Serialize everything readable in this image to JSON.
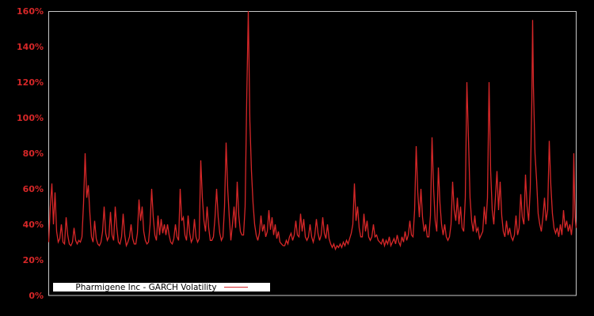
{
  "chart": {
    "background_color": "#000000",
    "frame_color": "#c8c8c8",
    "line_color": "#d62728",
    "tick_color": "#d62728",
    "legend": {
      "label": "Pharmigene Inc - GARCH Volatility",
      "background_color": "#ffffff",
      "border_color": "#000000",
      "text_color": "#000000",
      "sample_color": "#d62728",
      "position": "lower left"
    }
  },
  "chart_data": {
    "type": "line",
    "title": "",
    "xlabel": "",
    "ylabel": "",
    "series_name": "Pharmigene Inc - GARCH Volatility",
    "unit": "%",
    "ylim": [
      0,
      160
    ],
    "x_range": [
      0,
      666
    ],
    "grid": false,
    "x_tick_labels": [],
    "yticks": [
      0,
      20,
      40,
      60,
      80,
      100,
      120,
      140,
      160
    ],
    "ytick_labels": [
      "0%",
      "20%",
      "40%",
      "60%",
      "80%",
      "100%",
      "120%",
      "140%",
      "160%"
    ],
    "legend_position": "lower left",
    "points": [
      [
        0,
        30
      ],
      [
        2,
        50
      ],
      [
        4,
        63
      ],
      [
        6,
        40
      ],
      [
        8,
        58
      ],
      [
        10,
        36
      ],
      [
        12,
        30
      ],
      [
        14,
        32
      ],
      [
        16,
        40
      ],
      [
        18,
        30
      ],
      [
        20,
        29
      ],
      [
        22,
        44
      ],
      [
        24,
        34
      ],
      [
        26,
        29
      ],
      [
        28,
        28
      ],
      [
        30,
        30
      ],
      [
        32,
        38
      ],
      [
        34,
        31
      ],
      [
        36,
        29
      ],
      [
        38,
        31
      ],
      [
        40,
        30
      ],
      [
        42,
        33
      ],
      [
        44,
        52
      ],
      [
        46,
        80
      ],
      [
        48,
        55
      ],
      [
        50,
        62
      ],
      [
        52,
        46
      ],
      [
        54,
        33
      ],
      [
        56,
        30
      ],
      [
        58,
        42
      ],
      [
        60,
        32
      ],
      [
        62,
        29
      ],
      [
        64,
        28
      ],
      [
        66,
        30
      ],
      [
        68,
        36
      ],
      [
        70,
        50
      ],
      [
        72,
        35
      ],
      [
        74,
        31
      ],
      [
        76,
        33
      ],
      [
        78,
        47
      ],
      [
        80,
        34
      ],
      [
        82,
        31
      ],
      [
        84,
        50
      ],
      [
        86,
        38
      ],
      [
        88,
        30
      ],
      [
        90,
        29
      ],
      [
        92,
        33
      ],
      [
        94,
        46
      ],
      [
        96,
        34
      ],
      [
        98,
        28
      ],
      [
        100,
        30
      ],
      [
        102,
        33
      ],
      [
        104,
        40
      ],
      [
        106,
        32
      ],
      [
        108,
        29
      ],
      [
        110,
        29
      ],
      [
        112,
        35
      ],
      [
        114,
        54
      ],
      [
        116,
        42
      ],
      [
        118,
        50
      ],
      [
        120,
        36
      ],
      [
        122,
        31
      ],
      [
        124,
        29
      ],
      [
        126,
        30
      ],
      [
        128,
        40
      ],
      [
        130,
        60
      ],
      [
        132,
        44
      ],
      [
        134,
        34
      ],
      [
        136,
        31
      ],
      [
        138,
        45
      ],
      [
        140,
        34
      ],
      [
        142,
        43
      ],
      [
        144,
        35
      ],
      [
        146,
        40
      ],
      [
        148,
        34
      ],
      [
        150,
        40
      ],
      [
        152,
        34
      ],
      [
        154,
        30
      ],
      [
        156,
        29
      ],
      [
        158,
        32
      ],
      [
        160,
        40
      ],
      [
        162,
        33
      ],
      [
        164,
        31
      ],
      [
        166,
        60
      ],
      [
        168,
        42
      ],
      [
        170,
        44
      ],
      [
        172,
        34
      ],
      [
        174,
        31
      ],
      [
        176,
        45
      ],
      [
        178,
        35
      ],
      [
        180,
        30
      ],
      [
        182,
        32
      ],
      [
        184,
        43
      ],
      [
        186,
        33
      ],
      [
        188,
        30
      ],
      [
        190,
        32
      ],
      [
        192,
        76
      ],
      [
        194,
        55
      ],
      [
        196,
        42
      ],
      [
        198,
        36
      ],
      [
        200,
        50
      ],
      [
        202,
        38
      ],
      [
        204,
        31
      ],
      [
        206,
        31
      ],
      [
        208,
        33
      ],
      [
        210,
        44
      ],
      [
        212,
        60
      ],
      [
        214,
        44
      ],
      [
        216,
        35
      ],
      [
        218,
        31
      ],
      [
        220,
        33
      ],
      [
        222,
        50
      ],
      [
        224,
        86
      ],
      [
        226,
        60
      ],
      [
        228,
        44
      ],
      [
        230,
        31
      ],
      [
        232,
        40
      ],
      [
        234,
        50
      ],
      [
        236,
        38
      ],
      [
        238,
        64
      ],
      [
        240,
        45
      ],
      [
        242,
        36
      ],
      [
        244,
        34
      ],
      [
        246,
        34
      ],
      [
        248,
        50
      ],
      [
        250,
        110
      ],
      [
        252,
        160
      ],
      [
        254,
        98
      ],
      [
        256,
        70
      ],
      [
        258,
        52
      ],
      [
        260,
        40
      ],
      [
        262,
        34
      ],
      [
        264,
        31
      ],
      [
        266,
        35
      ],
      [
        268,
        45
      ],
      [
        270,
        36
      ],
      [
        272,
        40
      ],
      [
        274,
        33
      ],
      [
        276,
        36
      ],
      [
        278,
        48
      ],
      [
        280,
        37
      ],
      [
        282,
        44
      ],
      [
        284,
        34
      ],
      [
        286,
        40
      ],
      [
        288,
        32
      ],
      [
        290,
        36
      ],
      [
        292,
        30
      ],
      [
        294,
        29
      ],
      [
        296,
        28
      ],
      [
        298,
        28
      ],
      [
        300,
        31
      ],
      [
        302,
        29
      ],
      [
        304,
        33
      ],
      [
        306,
        35
      ],
      [
        308,
        31
      ],
      [
        310,
        34
      ],
      [
        312,
        42
      ],
      [
        314,
        34
      ],
      [
        316,
        33
      ],
      [
        318,
        46
      ],
      [
        320,
        36
      ],
      [
        322,
        43
      ],
      [
        324,
        33
      ],
      [
        326,
        31
      ],
      [
        328,
        33
      ],
      [
        330,
        40
      ],
      [
        332,
        33
      ],
      [
        334,
        30
      ],
      [
        336,
        34
      ],
      [
        338,
        43
      ],
      [
        340,
        35
      ],
      [
        342,
        31
      ],
      [
        344,
        34
      ],
      [
        346,
        44
      ],
      [
        348,
        35
      ],
      [
        350,
        32
      ],
      [
        352,
        40
      ],
      [
        354,
        32
      ],
      [
        356,
        29
      ],
      [
        358,
        27
      ],
      [
        360,
        29
      ],
      [
        362,
        26
      ],
      [
        364,
        28
      ],
      [
        366,
        27
      ],
      [
        368,
        29
      ],
      [
        370,
        27
      ],
      [
        372,
        30
      ],
      [
        374,
        28
      ],
      [
        376,
        31
      ],
      [
        378,
        29
      ],
      [
        380,
        32
      ],
      [
        382,
        35
      ],
      [
        384,
        40
      ],
      [
        386,
        63
      ],
      [
        388,
        42
      ],
      [
        390,
        50
      ],
      [
        392,
        38
      ],
      [
        394,
        33
      ],
      [
        396,
        33
      ],
      [
        398,
        46
      ],
      [
        400,
        36
      ],
      [
        402,
        42
      ],
      [
        404,
        33
      ],
      [
        406,
        31
      ],
      [
        408,
        33
      ],
      [
        410,
        40
      ],
      [
        412,
        33
      ],
      [
        414,
        34
      ],
      [
        416,
        31
      ],
      [
        418,
        30
      ],
      [
        420,
        29
      ],
      [
        422,
        32
      ],
      [
        424,
        28
      ],
      [
        426,
        31
      ],
      [
        428,
        29
      ],
      [
        430,
        33
      ],
      [
        432,
        28
      ],
      [
        434,
        30
      ],
      [
        436,
        32
      ],
      [
        438,
        29
      ],
      [
        440,
        34
      ],
      [
        442,
        30
      ],
      [
        444,
        28
      ],
      [
        446,
        33
      ],
      [
        448,
        30
      ],
      [
        450,
        36
      ],
      [
        452,
        31
      ],
      [
        454,
        34
      ],
      [
        456,
        42
      ],
      [
        458,
        34
      ],
      [
        460,
        33
      ],
      [
        462,
        48
      ],
      [
        464,
        84
      ],
      [
        466,
        58
      ],
      [
        468,
        44
      ],
      [
        470,
        60
      ],
      [
        472,
        44
      ],
      [
        474,
        36
      ],
      [
        476,
        40
      ],
      [
        478,
        33
      ],
      [
        480,
        33
      ],
      [
        482,
        45
      ],
      [
        484,
        89
      ],
      [
        486,
        60
      ],
      [
        488,
        42
      ],
      [
        490,
        36
      ],
      [
        492,
        72
      ],
      [
        494,
        52
      ],
      [
        496,
        40
      ],
      [
        498,
        34
      ],
      [
        500,
        40
      ],
      [
        502,
        33
      ],
      [
        504,
        31
      ],
      [
        506,
        33
      ],
      [
        508,
        40
      ],
      [
        510,
        64
      ],
      [
        512,
        48
      ],
      [
        514,
        42
      ],
      [
        516,
        55
      ],
      [
        518,
        40
      ],
      [
        520,
        50
      ],
      [
        522,
        38
      ],
      [
        524,
        36
      ],
      [
        526,
        55
      ],
      [
        528,
        120
      ],
      [
        530,
        88
      ],
      [
        532,
        55
      ],
      [
        534,
        42
      ],
      [
        536,
        36
      ],
      [
        538,
        45
      ],
      [
        540,
        36
      ],
      [
        542,
        38
      ],
      [
        544,
        32
      ],
      [
        546,
        34
      ],
      [
        548,
        36
      ],
      [
        550,
        50
      ],
      [
        552,
        40
      ],
      [
        554,
        55
      ],
      [
        556,
        120
      ],
      [
        558,
        70
      ],
      [
        560,
        48
      ],
      [
        562,
        40
      ],
      [
        564,
        55
      ],
      [
        566,
        70
      ],
      [
        568,
        48
      ],
      [
        570,
        64
      ],
      [
        572,
        45
      ],
      [
        574,
        36
      ],
      [
        576,
        33
      ],
      [
        578,
        42
      ],
      [
        580,
        34
      ],
      [
        582,
        38
      ],
      [
        584,
        33
      ],
      [
        586,
        31
      ],
      [
        588,
        34
      ],
      [
        590,
        45
      ],
      [
        592,
        34
      ],
      [
        594,
        38
      ],
      [
        596,
        57
      ],
      [
        598,
        44
      ],
      [
        600,
        40
      ],
      [
        602,
        68
      ],
      [
        604,
        50
      ],
      [
        606,
        42
      ],
      [
        608,
        60
      ],
      [
        610,
        110
      ],
      [
        611,
        155
      ],
      [
        612,
        118
      ],
      [
        614,
        80
      ],
      [
        616,
        65
      ],
      [
        618,
        46
      ],
      [
        620,
        40
      ],
      [
        622,
        36
      ],
      [
        624,
        44
      ],
      [
        626,
        55
      ],
      [
        628,
        42
      ],
      [
        630,
        48
      ],
      [
        632,
        87
      ],
      [
        634,
        62
      ],
      [
        636,
        46
      ],
      [
        638,
        38
      ],
      [
        640,
        35
      ],
      [
        642,
        38
      ],
      [
        644,
        33
      ],
      [
        646,
        40
      ],
      [
        648,
        34
      ],
      [
        650,
        48
      ],
      [
        652,
        38
      ],
      [
        654,
        42
      ],
      [
        656,
        36
      ],
      [
        658,
        40
      ],
      [
        660,
        34
      ],
      [
        662,
        44
      ],
      [
        663,
        80
      ],
      [
        664,
        55
      ],
      [
        665,
        42
      ],
      [
        666,
        38
      ]
    ]
  }
}
